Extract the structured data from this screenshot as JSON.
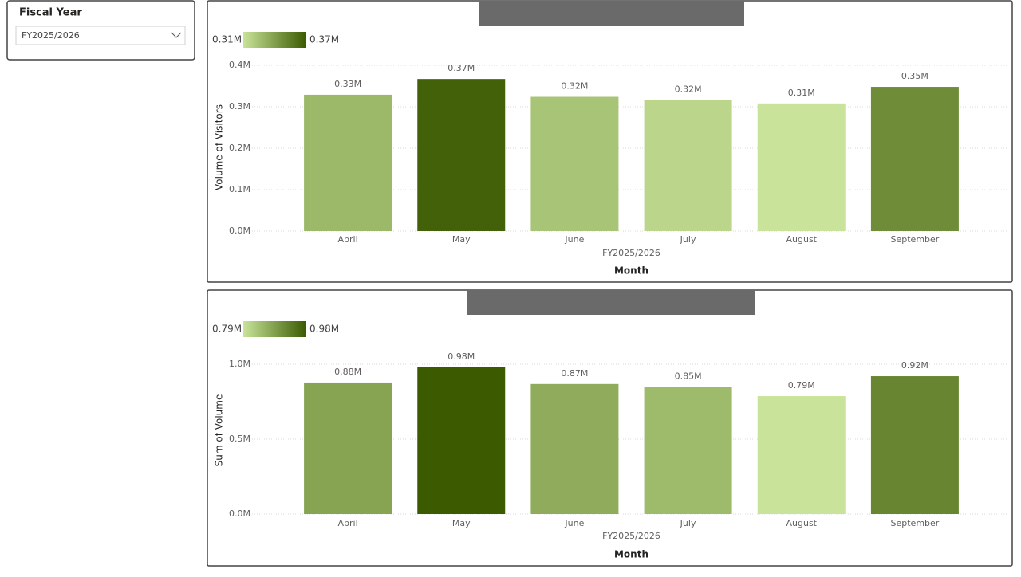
{
  "slicer": {
    "title": "Fiscal Year",
    "value": "FY2025/2026"
  },
  "chart_data": [
    {
      "type": "bar",
      "y_label": "Volume of Visitors",
      "x_label": "Month",
      "x_group_label": "FY2025/2026",
      "categories": [
        "April",
        "May",
        "June",
        "July",
        "August",
        "September"
      ],
      "values": [
        0.329,
        0.367,
        0.324,
        0.316,
        0.308,
        0.348
      ],
      "value_labels": [
        "0.33M",
        "0.37M",
        "0.32M",
        "0.32M",
        "0.31M",
        "0.35M"
      ],
      "ylim": [
        0,
        0.4
      ],
      "yticks": [
        {
          "value": 0,
          "label": "0.0M"
        },
        {
          "value": 0.1,
          "label": "0.1M"
        },
        {
          "value": 0.2,
          "label": "0.2M"
        },
        {
          "value": 0.3,
          "label": "0.3M"
        },
        {
          "value": 0.4,
          "label": "0.4M"
        }
      ],
      "grid": true,
      "color_scale": {
        "min": {
          "value": 0.31,
          "label": "0.31M"
        },
        "max": {
          "value": 0.37,
          "label": "0.37M"
        },
        "colors": [
          "#c9e49a",
          "#3b5a00"
        ]
      }
    },
    {
      "type": "bar",
      "y_label": "Sum of Volume",
      "x_label": "Month",
      "x_group_label": "FY2025/2026",
      "categories": [
        "April",
        "May",
        "June",
        "July",
        "August",
        "September"
      ],
      "values": [
        0.878,
        0.979,
        0.868,
        0.848,
        0.787,
        0.92
      ],
      "value_labels": [
        "0.88M",
        "0.98M",
        "0.87M",
        "0.85M",
        "0.79M",
        "0.92M"
      ],
      "ylim": [
        0,
        1
      ],
      "yticks": [
        {
          "value": 0,
          "label": "0.0M"
        },
        {
          "value": 0.5,
          "label": "0.5M"
        },
        {
          "value": 1,
          "label": "1.0M"
        }
      ],
      "grid": true,
      "color_scale": {
        "min": {
          "value": 0.79,
          "label": "0.79M"
        },
        "max": {
          "value": 0.98,
          "label": "0.98M"
        },
        "colors": [
          "#c9e49a",
          "#3b5a00"
        ]
      }
    }
  ]
}
